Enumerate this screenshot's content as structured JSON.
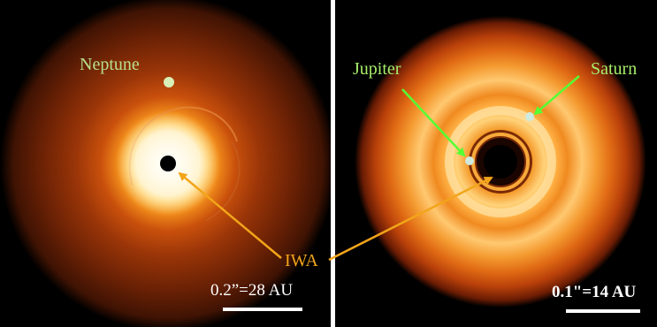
{
  "colors": {
    "neptune_label": "#b8e08a",
    "planet_labels": "#a6ee6a",
    "iwa": "#f2a51a",
    "planet_arrow": "#55ff33",
    "scale_text": "#ffffff"
  },
  "left_panel": {
    "planet_label": "Neptune",
    "scale_text": "0.2”=28 AU"
  },
  "right_panel": {
    "planet_labels": [
      "Jupiter",
      "Saturn"
    ],
    "scale_text": "0.1\"=14 AU"
  },
  "shared": {
    "iwa_label": "IWA"
  }
}
